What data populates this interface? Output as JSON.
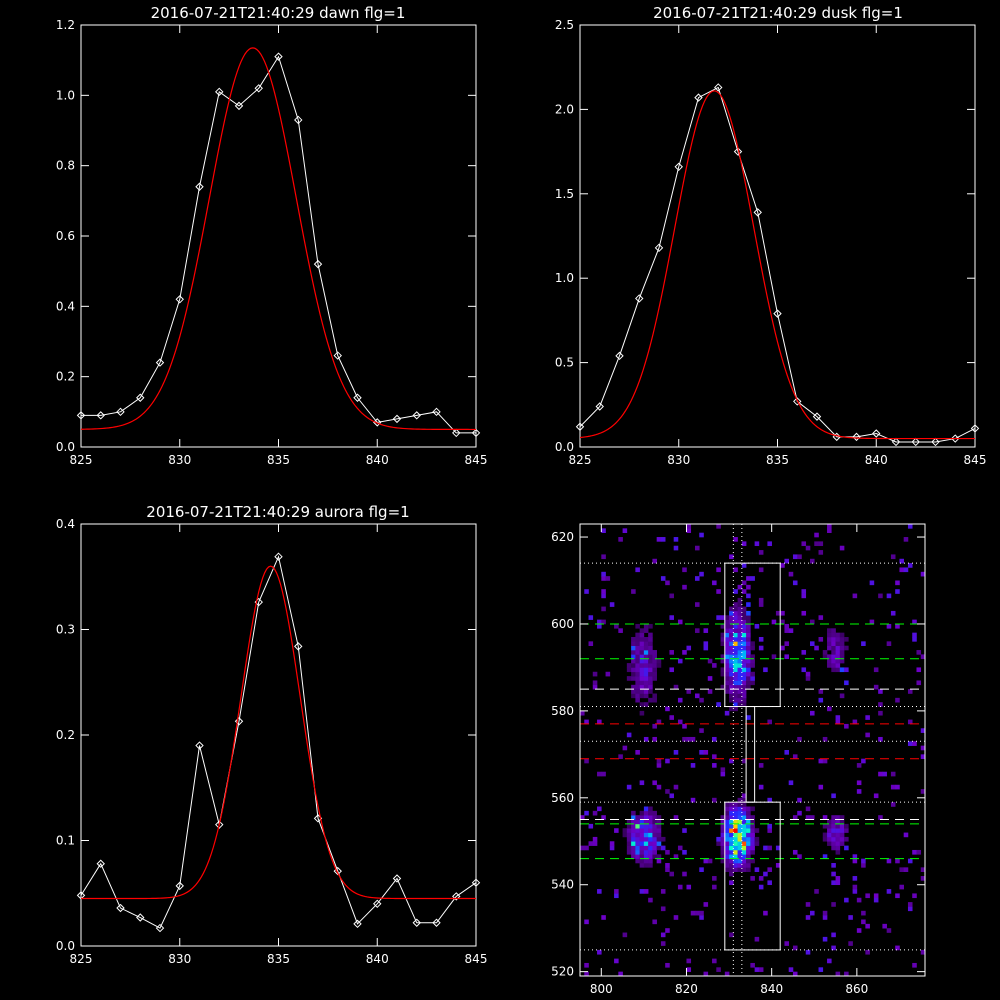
{
  "chart_data": [
    {
      "type": "line",
      "title": "2016-07-21T21:40:29 dawn flg=1",
      "xlim": [
        825,
        845
      ],
      "ylim": [
        0,
        1.2
      ],
      "xticks": [
        825,
        830,
        835,
        840,
        845
      ],
      "xtick_labels": [
        "825",
        "830",
        "835",
        "840",
        "845"
      ],
      "yticks": [
        0,
        0.2,
        0.4,
        0.6,
        0.8,
        1.0,
        1.2
      ],
      "ytick_labels": [
        "0.0",
        "0.2",
        "0.4",
        "0.6",
        "0.8",
        "1.0",
        "1.2"
      ],
      "series": [
        {
          "color": "#ffffff",
          "marker": "diamond",
          "x": [
            825,
            826,
            827,
            828,
            829,
            830,
            831,
            832,
            833,
            834,
            835,
            836,
            837,
            838,
            839,
            840,
            841,
            842,
            843,
            844,
            845
          ],
          "y": [
            0.09,
            0.09,
            0.1,
            0.14,
            0.24,
            0.42,
            0.74,
            1.01,
            0.97,
            1.02,
            1.11,
            0.93,
            0.52,
            0.26,
            0.14,
            0.07,
            0.08,
            0.09,
            0.1,
            0.04,
            0.04
          ]
        },
        {
          "color": "#ff0000",
          "fit": {
            "amplitude": 1.085,
            "center": 833.7,
            "sigma": 2.2,
            "baseline": 0.05
          }
        }
      ]
    },
    {
      "type": "line",
      "title": "2016-07-21T21:40:29 dusk flg=1",
      "xlim": [
        825,
        845
      ],
      "ylim": [
        0,
        2.5
      ],
      "xticks": [
        825,
        830,
        835,
        840,
        845
      ],
      "xtick_labels": [
        "825",
        "830",
        "835",
        "840",
        "845"
      ],
      "yticks": [
        0,
        0.5,
        1.0,
        1.5,
        2.0,
        2.5
      ],
      "ytick_labels": [
        "0.0",
        "0.5",
        "1.0",
        "1.5",
        "2.0",
        "2.5"
      ],
      "series": [
        {
          "color": "#ffffff",
          "marker": "diamond",
          "x": [
            825,
            826,
            827,
            828,
            829,
            830,
            831,
            832,
            833,
            834,
            835,
            836,
            837,
            838,
            839,
            840,
            841,
            842,
            843,
            844,
            845
          ],
          "y": [
            0.12,
            0.24,
            0.54,
            0.88,
            1.18,
            1.66,
            2.07,
            2.13,
            1.75,
            1.39,
            0.79,
            0.27,
            0.18,
            0.06,
            0.06,
            0.08,
            0.03,
            0.03,
            0.03,
            0.05,
            0.11
          ]
        },
        {
          "color": "#ff0000",
          "fit": {
            "amplitude": 2.06,
            "center": 831.8,
            "sigma": 2.0,
            "baseline": 0.05
          }
        }
      ]
    },
    {
      "type": "line",
      "title": "2016-07-21T21:40:29 aurora flg=1",
      "xlim": [
        825,
        845
      ],
      "ylim": [
        0,
        0.4
      ],
      "xticks": [
        825,
        830,
        835,
        840,
        845
      ],
      "xtick_labels": [
        "825",
        "830",
        "835",
        "840",
        "845"
      ],
      "yticks": [
        0,
        0.1,
        0.2,
        0.3,
        0.4
      ],
      "ytick_labels": [
        "0.0",
        "0.1",
        "0.2",
        "0.3",
        "0.4"
      ],
      "series": [
        {
          "color": "#ffffff",
          "marker": "diamond",
          "x": [
            825,
            826,
            827,
            828,
            829,
            830,
            831,
            832,
            833,
            834,
            835,
            836,
            837,
            838,
            839,
            840,
            841,
            842,
            843,
            844,
            845
          ],
          "y": [
            0.048,
            0.078,
            0.036,
            0.027,
            0.017,
            0.057,
            0.19,
            0.115,
            0.213,
            0.326,
            0.369,
            0.284,
            0.121,
            0.071,
            0.021,
            0.04,
            0.064,
            0.022,
            0.022,
            0.047,
            0.06
          ]
        },
        {
          "color": "#ff0000",
          "fit": {
            "amplitude": 0.315,
            "center": 834.6,
            "sigma": 1.5,
            "baseline": 0.045
          }
        }
      ]
    },
    {
      "type": "heatmap",
      "xlim": [
        795,
        876
      ],
      "ylim": [
        519,
        623
      ],
      "xticks": [
        800,
        820,
        840,
        860
      ],
      "xtick_labels": [
        "800",
        "820",
        "840",
        "860"
      ],
      "yticks": [
        520,
        540,
        560,
        580,
        600,
        620
      ],
      "ytick_labels": [
        "520",
        "540",
        "560",
        "580",
        "600",
        "620"
      ],
      "blobs": [
        {
          "x": 832,
          "y": 551,
          "sx": 2.2,
          "sy": 4.5,
          "a": 1.0
        },
        {
          "x": 832,
          "y": 593,
          "sx": 2.2,
          "sy": 7,
          "a": 0.6
        },
        {
          "x": 810,
          "y": 551,
          "sx": 2.5,
          "sy": 4,
          "a": 0.55
        },
        {
          "x": 810,
          "y": 590,
          "sx": 2.5,
          "sy": 7,
          "a": 0.32
        },
        {
          "x": 855,
          "y": 552,
          "sx": 2,
          "sy": 3,
          "a": 0.35
        },
        {
          "x": 855,
          "y": 594,
          "sx": 2,
          "sy": 4,
          "a": 0.28
        }
      ],
      "overlays": {
        "boxes": [
          {
            "x0": 829,
            "x1": 842,
            "y0": 581,
            "y1": 614
          },
          {
            "x0": 829,
            "x1": 842,
            "y0": 525,
            "y1": 559
          },
          {
            "x0": 834,
            "x1": 836,
            "y0": 559,
            "y1": 581
          }
        ],
        "vlines_dotted": [
          831,
          833
        ],
        "hlines_dotted": [
          614,
          581,
          573,
          559,
          525
        ],
        "hlines_dashed": [
          {
            "y": 600,
            "color": "#00ff00"
          },
          {
            "y": 592,
            "color": "#00ff00"
          },
          {
            "y": 585,
            "color": "#ffffff"
          },
          {
            "y": 577,
            "color": "#ff0000"
          },
          {
            "y": 569,
            "color": "#ff0000"
          },
          {
            "y": 555,
            "color": "#ffffff"
          },
          {
            "y": 554,
            "color": "#00ff00"
          },
          {
            "y": 546,
            "color": "#00ff00"
          }
        ]
      }
    }
  ]
}
